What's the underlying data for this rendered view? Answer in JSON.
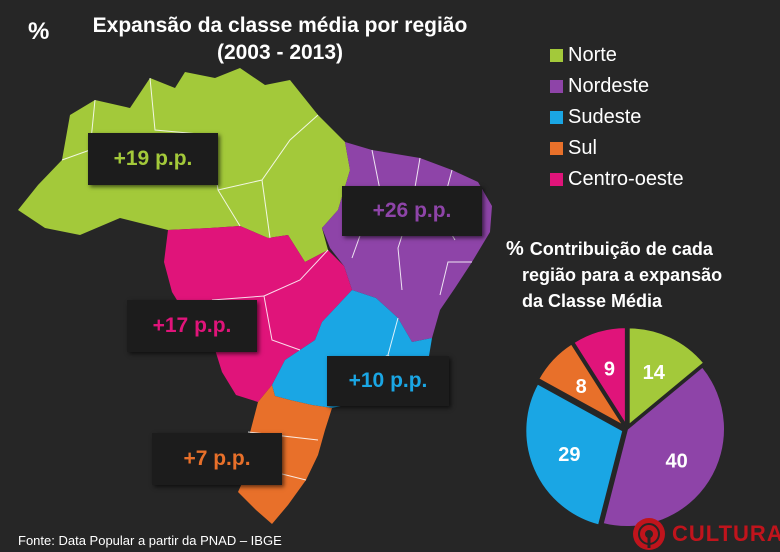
{
  "header": {
    "unit_mark": "%",
    "title_line1": "Expansão da classe média por região",
    "title_line2": "(2003 - 2013)"
  },
  "map": {
    "regions": [
      {
        "name": "Norte",
        "label": "+19 p.p.",
        "color": "#a3c93a"
      },
      {
        "name": "Nordeste",
        "label": "+26 p.p.",
        "color": "#8e44a8"
      },
      {
        "name": "Sudeste",
        "label": "+10 p.p.",
        "color": "#1aa6e4"
      },
      {
        "name": "Sul",
        "label": "+7 p.p.",
        "color": "#e8702a"
      },
      {
        "name": "Centro-oeste",
        "label": "+17 p.p.",
        "color": "#e0147a"
      }
    ]
  },
  "legend": {
    "items": [
      {
        "label": "Norte",
        "color": "#a3c93a"
      },
      {
        "label": "Nordeste",
        "color": "#8e44a8"
      },
      {
        "label": "Sudeste",
        "color": "#1aa6e4"
      },
      {
        "label": "Sul",
        "color": "#e8702a"
      },
      {
        "label": "Centro-oeste",
        "color": "#e0147a"
      }
    ]
  },
  "pie": {
    "unit_mark": "%",
    "title_line1": "Contribuição de cada",
    "title_line2": "região para a expansão",
    "title_line3": "da Classe Média"
  },
  "chart_data": [
    {
      "type": "pie",
      "title": "Contribuição de cada região para a expansão da Classe Média",
      "unit": "%",
      "slices": [
        {
          "label": "Norte",
          "value": 14,
          "color": "#a3c93a"
        },
        {
          "label": "Nordeste",
          "value": 40,
          "color": "#8e44a8"
        },
        {
          "label": "Sudeste",
          "value": 29,
          "color": "#1aa6e4"
        },
        {
          "label": "Sul",
          "value": 8,
          "color": "#e8702a"
        },
        {
          "label": "Centro-oeste",
          "value": 9,
          "color": "#e0147a"
        }
      ]
    },
    {
      "type": "map",
      "title": "Expansão da classe média por região (2003 - 2013)",
      "unit": "p.p.",
      "values": [
        {
          "region": "Norte",
          "value": 19
        },
        {
          "region": "Nordeste",
          "value": 26
        },
        {
          "region": "Sudeste",
          "value": 10
        },
        {
          "region": "Sul",
          "value": 7
        },
        {
          "region": "Centro-oeste",
          "value": 17
        }
      ]
    }
  ],
  "footer": {
    "source": "Fonte: Data Popular a partir da PNAD – IBGE",
    "logo_text": "CULTURA",
    "logo_color": "#c0141c"
  }
}
